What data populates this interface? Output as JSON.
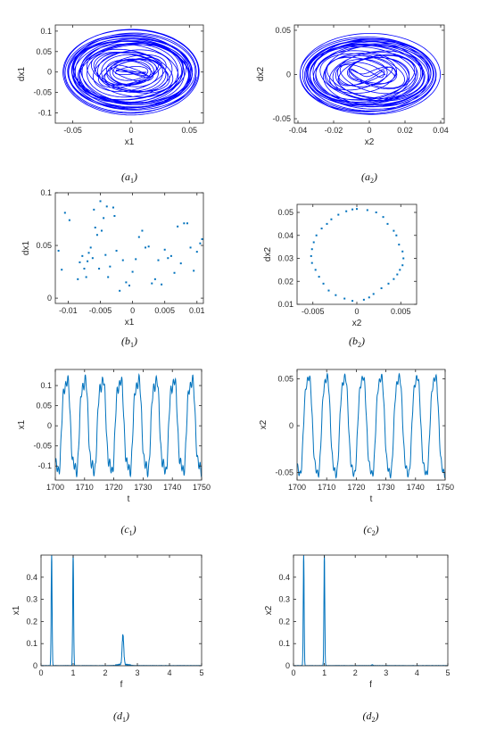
{
  "figure": {
    "colors": {
      "series": "#0000ff",
      "points": "#0072bd",
      "axis": "#262626"
    }
  },
  "chart_data": [
    {
      "id": "a1",
      "type": "line",
      "caption": "(a1)",
      "caption_main": "a",
      "caption_sub": "1",
      "xlabel": "x1",
      "ylabel": "dx1",
      "xlim": [
        -0.065,
        0.062
      ],
      "ylim": [
        -0.125,
        0.115
      ],
      "xticks": [
        -0.05,
        0,
        0.05
      ],
      "xtick_labels": [
        "-0.05",
        "0",
        "0.05"
      ],
      "yticks": [
        -0.1,
        -0.05,
        0,
        0.05,
        0.1
      ],
      "ytick_labels": [
        "-0.1",
        "-0.05",
        "0",
        "0.05",
        "0.1"
      ],
      "color": "#0000ff",
      "phase_portrait": {
        "x_amp": 0.06,
        "y_amp": 0.12,
        "freq_ratio": 2.5,
        "theta_max": 240
      }
    },
    {
      "id": "a2",
      "type": "line",
      "caption": "(a2)",
      "caption_main": "a",
      "caption_sub": "2",
      "xlabel": "x2",
      "ylabel": "dx2",
      "xlim": [
        -0.042,
        0.042
      ],
      "ylim": [
        -0.055,
        0.056
      ],
      "xticks": [
        -0.04,
        -0.02,
        0,
        0.02,
        0.04
      ],
      "xtick_labels": [
        "-0.04",
        "-0.02",
        "0",
        "0.02",
        "0.04"
      ],
      "yticks": [
        -0.05,
        0,
        0.05
      ],
      "ytick_labels": [
        "-0.05",
        "0",
        "0.05"
      ],
      "color": "#0000ff",
      "phase_portrait": {
        "x_amp": 0.04,
        "y_amp": 0.052,
        "freq_ratio": 3.0,
        "theta_max": 200
      }
    },
    {
      "id": "b1",
      "type": "scatter",
      "caption": "(b1)",
      "caption_main": "b",
      "caption_sub": "1",
      "xlabel": "x1",
      "ylabel": "dx1",
      "xlim": [
        -0.012,
        0.011
      ],
      "ylim": [
        -0.005,
        0.1
      ],
      "xticks": [
        -0.01,
        -0.005,
        0,
        0.005,
        0.01
      ],
      "xtick_labels": [
        "-0.01",
        "-0.005",
        "0",
        "0.005",
        "0.01"
      ],
      "yticks": [
        0,
        0.05,
        0.1
      ],
      "ytick_labels": [
        "0",
        "0.05",
        "0.1"
      ],
      "color": "#0072bd",
      "x": [
        -0.0115,
        -0.011,
        -0.0105,
        -0.0098,
        -0.0085,
        -0.0082,
        -0.0078,
        -0.0075,
        -0.0072,
        -0.007,
        -0.0068,
        -0.0065,
        -0.0062,
        -0.006,
        -0.0058,
        -0.0055,
        -0.0052,
        -0.005,
        -0.0048,
        -0.0045,
        -0.0042,
        -0.004,
        -0.0038,
        -0.0035,
        -0.003,
        -0.0028,
        -0.0025,
        -0.002,
        -0.0015,
        -0.001,
        -0.0005,
        0.0,
        0.0005,
        0.001,
        0.0015,
        0.002,
        0.0025,
        0.003,
        0.0035,
        0.004,
        0.0045,
        0.005,
        0.0055,
        0.006,
        0.0065,
        0.007,
        0.0075,
        0.008,
        0.0085,
        0.009,
        0.0095,
        0.01,
        0.0105,
        0.0108
      ],
      "y": [
        0.045,
        0.027,
        0.081,
        0.074,
        0.018,
        0.034,
        0.04,
        0.028,
        0.02,
        0.035,
        0.043,
        0.048,
        0.038,
        0.084,
        0.067,
        0.06,
        0.028,
        0.092,
        0.064,
        0.076,
        0.041,
        0.087,
        0.02,
        0.03,
        0.086,
        0.078,
        0.045,
        0.007,
        0.036,
        0.015,
        0.012,
        0.025,
        0.037,
        0.058,
        0.064,
        0.048,
        0.049,
        0.014,
        0.018,
        0.036,
        0.013,
        0.046,
        0.038,
        0.04,
        0.024,
        0.068,
        0.033,
        0.071,
        0.071,
        0.048,
        0.026,
        0.044,
        0.052,
        0.056
      ]
    },
    {
      "id": "b2",
      "type": "scatter",
      "caption": "(b2)",
      "caption_main": "b",
      "caption_sub": "2",
      "xlabel": "x2",
      "ylabel": "dx2",
      "xlim": [
        -0.0068,
        0.0068
      ],
      "ylim": [
        0.01,
        0.0535
      ],
      "xticks": [
        -0.005,
        0,
        0.005
      ],
      "xtick_labels": [
        "-0.005",
        "0",
        "0.005"
      ],
      "yticks": [
        0.01,
        0.02,
        0.03,
        0.04,
        0.05
      ],
      "ytick_labels": [
        "0.01",
        "0.02",
        "0.03",
        "0.04",
        "0.05"
      ],
      "color": "#0072bd",
      "x": [
        0.0,
        0.0012,
        0.0022,
        0.003,
        0.0035,
        0.0042,
        0.0045,
        0.0048,
        0.0052,
        0.0053,
        0.0052,
        0.0049,
        0.0046,
        0.0042,
        0.0036,
        0.0028,
        0.0019,
        0.0014,
        0.0008,
        -0.0005,
        -0.0014,
        -0.0024,
        -0.0032,
        -0.0038,
        -0.0043,
        -0.0047,
        -0.0051,
        -0.0052,
        -0.0051,
        -0.0049,
        -0.0046,
        -0.004,
        -0.0034,
        -0.0029,
        -0.0021,
        -0.0012,
        -0.0005
      ],
      "y": [
        0.0515,
        0.051,
        0.05,
        0.048,
        0.045,
        0.042,
        0.04,
        0.036,
        0.033,
        0.03,
        0.027,
        0.025,
        0.023,
        0.021,
        0.019,
        0.017,
        0.0145,
        0.013,
        0.012,
        0.0115,
        0.0125,
        0.014,
        0.016,
        0.019,
        0.022,
        0.025,
        0.028,
        0.031,
        0.034,
        0.037,
        0.04,
        0.043,
        0.045,
        0.047,
        0.049,
        0.0505,
        0.0513
      ]
    },
    {
      "id": "c1",
      "type": "line",
      "caption": "(c1)",
      "caption_main": "c",
      "caption_sub": "1",
      "xlabel": "t",
      "ylabel": "x1",
      "xlim": [
        1700,
        1750
      ],
      "ylim": [
        -0.135,
        0.14
      ],
      "xticks": [
        1700,
        1710,
        1720,
        1730,
        1740,
        1750
      ],
      "xtick_labels": [
        "1700",
        "1710",
        "1720",
        "1730",
        "1740",
        "1750"
      ],
      "yticks": [
        -0.1,
        -0.05,
        0,
        0.05,
        0.1
      ],
      "ytick_labels": [
        "-0.1",
        "-0.05",
        "0",
        "0.05",
        "0.1"
      ],
      "color": "#0072bd",
      "time_series": {
        "amplitude": 0.12,
        "period": 6.1,
        "harmonic": 0.02
      }
    },
    {
      "id": "c2",
      "type": "line",
      "caption": "(c2)",
      "caption_main": "c",
      "caption_sub": "2",
      "xlabel": "t",
      "ylabel": "x2",
      "xlim": [
        1700,
        1750
      ],
      "ylim": [
        -0.058,
        0.06
      ],
      "xticks": [
        1700,
        1710,
        1720,
        1730,
        1740,
        1750
      ],
      "xtick_labels": [
        "1700",
        "1710",
        "1720",
        "1730",
        "1740",
        "1750"
      ],
      "yticks": [
        -0.05,
        0,
        0.05
      ],
      "ytick_labels": [
        "-0.05",
        "0",
        "0.05"
      ],
      "color": "#0072bd",
      "time_series": {
        "amplitude": 0.055,
        "period": 6.1,
        "harmonic": 0.006
      }
    },
    {
      "id": "d1",
      "type": "line",
      "caption": "(d1)",
      "caption_main": "d",
      "caption_sub": "1",
      "xlabel": "f",
      "ylabel": "x1",
      "xlim": [
        0,
        5
      ],
      "ylim": [
        0,
        0.5
      ],
      "xticks": [
        0,
        1,
        2,
        3,
        4,
        5
      ],
      "xtick_labels": [
        "0",
        "1",
        "2",
        "3",
        "4",
        "5"
      ],
      "yticks": [
        0,
        0.1,
        0.2,
        0.3,
        0.4
      ],
      "ytick_labels": [
        "0",
        "0.1",
        "0.2",
        "0.3",
        "0.4"
      ],
      "color": "#0072bd",
      "peaks": [
        {
          "f": 0.33,
          "height": 0.5
        },
        {
          "f": 1.0,
          "height": 0.5
        },
        {
          "f": 2.55,
          "height": 0.135
        }
      ]
    },
    {
      "id": "d2",
      "type": "line",
      "caption": "(d2)",
      "caption_main": "d",
      "caption_sub": "2",
      "xlabel": "f",
      "ylabel": "x2",
      "xlim": [
        0,
        5
      ],
      "ylim": [
        0,
        0.5
      ],
      "xticks": [
        0,
        1,
        2,
        3,
        4,
        5
      ],
      "xtick_labels": [
        "0",
        "1",
        "2",
        "3",
        "4",
        "5"
      ],
      "yticks": [
        0,
        0.1,
        0.2,
        0.3,
        0.4
      ],
      "ytick_labels": [
        "0",
        "0.1",
        "0.2",
        "0.3",
        "0.4"
      ],
      "color": "#0072bd",
      "peaks": [
        {
          "f": 0.33,
          "height": 0.5
        },
        {
          "f": 1.0,
          "height": 0.5
        },
        {
          "f": 2.55,
          "height": 0.004
        }
      ]
    }
  ]
}
